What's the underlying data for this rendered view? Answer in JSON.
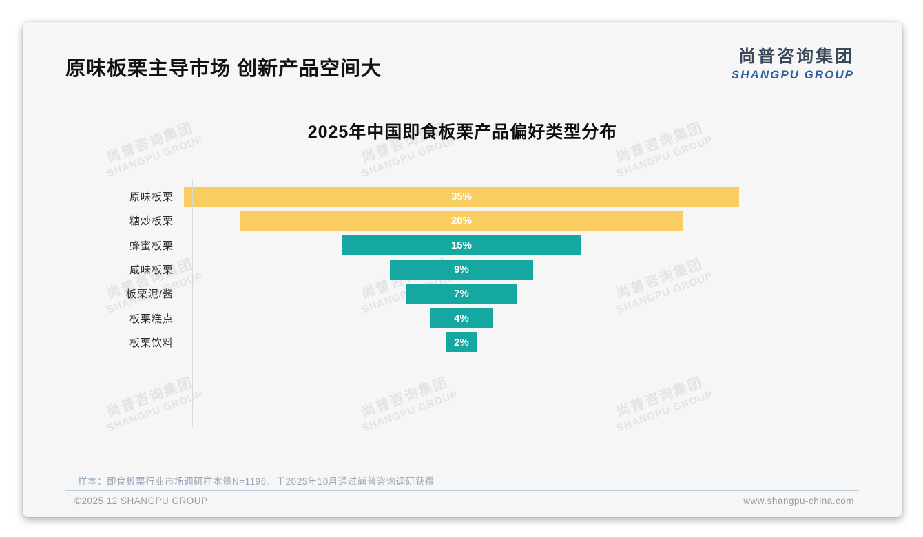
{
  "page": {
    "title": "原味板栗主导市场 创新产品空间大",
    "logo": {
      "cn": "尚普咨询集团",
      "en": "SHANGPU GROUP"
    },
    "watermark": {
      "cn": "尚普咨询集团",
      "en": "SHANGPU GROUP"
    },
    "sample_note": "样本：即食板栗行业市场调研样本量N=1196，于2025年10月通过尚普咨询调研获得",
    "footer": {
      "left": "©2025.12 SHANGPU GROUP",
      "right": "www.shangpu-china.com"
    }
  },
  "chart_data": {
    "type": "bar",
    "orientation": "horizontal-centered-funnel",
    "title": "2025年中国即食板栗产品偏好类型分布",
    "categories": [
      "原味板栗",
      "糖炒板栗",
      "蜂蜜板栗",
      "咸味板栗",
      "板栗泥/酱",
      "板栗糕点",
      "板栗饮料"
    ],
    "values": [
      35,
      28,
      15,
      9,
      7,
      4,
      2
    ],
    "labels": [
      "35%",
      "28%",
      "15%",
      "9%",
      "7%",
      "4%",
      "2%"
    ],
    "unit": "%",
    "xlim": [
      0,
      35
    ],
    "colors": [
      "#FACD62",
      "#FACD62",
      "#14A8A0",
      "#14A8A0",
      "#14A8A0",
      "#14A8A0",
      "#14A8A0"
    ],
    "highlight_color": "#FACD62",
    "base_color": "#14A8A0",
    "value_label_color": "#FFFFFF",
    "grid": false,
    "legend": "none"
  }
}
